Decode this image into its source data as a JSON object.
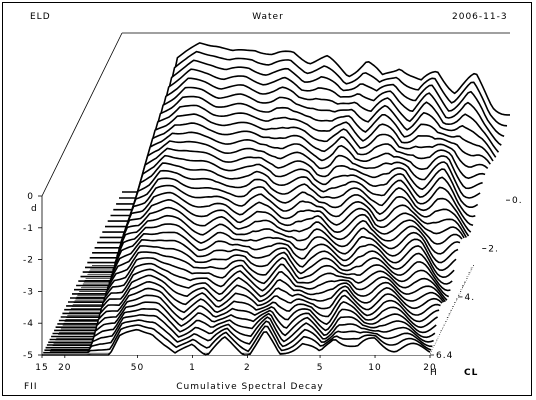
{
  "header": {
    "brand": "ELD",
    "title": "Water",
    "date": "2006-11-3"
  },
  "footer": {
    "corner_label": "FII",
    "caption": "Cumulative Spectral Decay"
  },
  "chart_data": {
    "type": "waterfall",
    "title": "Water",
    "xlabel": "H",
    "ylabel": "d",
    "zlabel": "CL",
    "x_tick_labels": [
      "15",
      "20",
      "50",
      "1",
      "2",
      "5",
      "10",
      "20"
    ],
    "x_ticks_hz": [
      15,
      20,
      50,
      100,
      200,
      500,
      1000,
      2000
    ],
    "xlim_hz": [
      15,
      2000
    ],
    "y_tick_labels": [
      "0",
      "-1",
      "-2",
      "-3",
      "-4",
      "-5"
    ],
    "ylim": [
      -5,
      0
    ],
    "z_tick_labels": [
      "0.",
      "2.",
      "4.",
      "6.4"
    ],
    "z_ticks": [
      0,
      2,
      4,
      6.4
    ],
    "zlim": [
      0,
      6.4
    ],
    "slice_count": 40,
    "front_slice_envelope": {
      "x_hz": [
        15,
        22,
        30,
        35,
        40,
        50,
        60,
        70,
        80,
        100,
        120,
        150,
        200,
        250,
        300,
        400,
        500,
        600,
        800,
        1000,
        1300,
        2000
      ],
      "level": [
        -5,
        -5,
        -5,
        -5,
        -4.4,
        -4.2,
        -4.3,
        -4.7,
        -5,
        -4.6,
        -5,
        -4.5,
        -5,
        -4.3,
        -5,
        -4.6,
        -5,
        -4.4,
        -4.8,
        -4.5,
        -4.8,
        -4.8
      ]
    },
    "rear_slice_envelope": {
      "x_hz": [
        15,
        22,
        30,
        40,
        50,
        60,
        80,
        100,
        130,
        160,
        200,
        260,
        330,
        400,
        500,
        650,
        800,
        1000,
        1300,
        1600,
        2000
      ],
      "level": [
        -5,
        -5,
        -0.8,
        -0.3,
        -0.4,
        -0.6,
        -0.5,
        -0.7,
        -0.6,
        -0.9,
        -0.8,
        -1.3,
        -0.9,
        -1.4,
        -1.0,
        -1.6,
        -1.2,
        -1.8,
        -1.4,
        -2.2,
        -2.6
      ]
    }
  }
}
